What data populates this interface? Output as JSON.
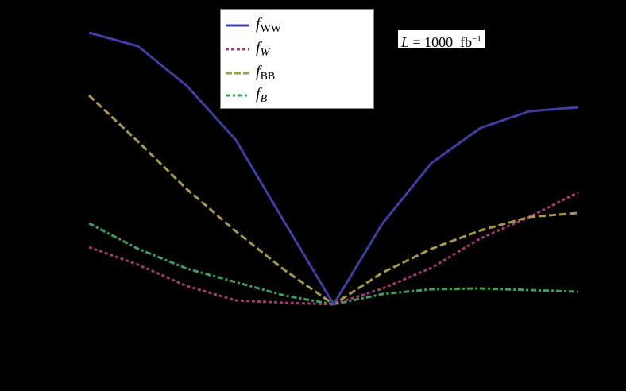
{
  "chart_data": {
    "type": "line",
    "title": "",
    "xlabel": "",
    "ylabel": "",
    "grid": false,
    "legend_position": "top-center (inside plot)",
    "annotation": "L = 1000 fb^-1",
    "x": [
      0,
      1,
      2,
      3,
      4,
      5,
      6,
      7,
      8,
      9,
      10
    ],
    "x_note": "11 equally spaced points; no axis tick labels visible; minimum of all curves at the central point",
    "y_note": "values are relative heights above the common minimum (pixel units), no y tick labels visible",
    "series": [
      {
        "name": "f_WW",
        "style": "solid",
        "color": "#3D3FA3",
        "values": [
          342,
          325,
          275,
          207,
          103,
          0,
          102,
          178,
          222,
          243,
          248
        ]
      },
      {
        "name": "f_W",
        "style": "dotted",
        "color": "#A33A72",
        "values": [
          72,
          50,
          23,
          5,
          2,
          0,
          20,
          46,
          83,
          110,
          141
        ]
      },
      {
        "name": "f_BB",
        "style": "dashed",
        "color": "#A8994A",
        "values": [
          263,
          205,
          145,
          92,
          43,
          0,
          40,
          70,
          93,
          110,
          115
        ]
      },
      {
        "name": "f_B",
        "style": "dash-dot",
        "color": "#3F9E5C",
        "values": [
          102,
          70,
          45,
          28,
          11,
          0,
          13,
          19,
          20,
          18,
          16
        ]
      }
    ]
  },
  "legend": {
    "items": [
      {
        "base": "f",
        "sub": "WW",
        "sub_italic": false
      },
      {
        "base": "f",
        "sub": "W",
        "sub_italic": true
      },
      {
        "base": "f",
        "sub": "BB",
        "sub_italic": false
      },
      {
        "base": "f",
        "sub": "B",
        "sub_italic": true
      }
    ]
  },
  "annotation": {
    "var": "L",
    "eq": " = 1000  fb",
    "exp": "−1"
  }
}
